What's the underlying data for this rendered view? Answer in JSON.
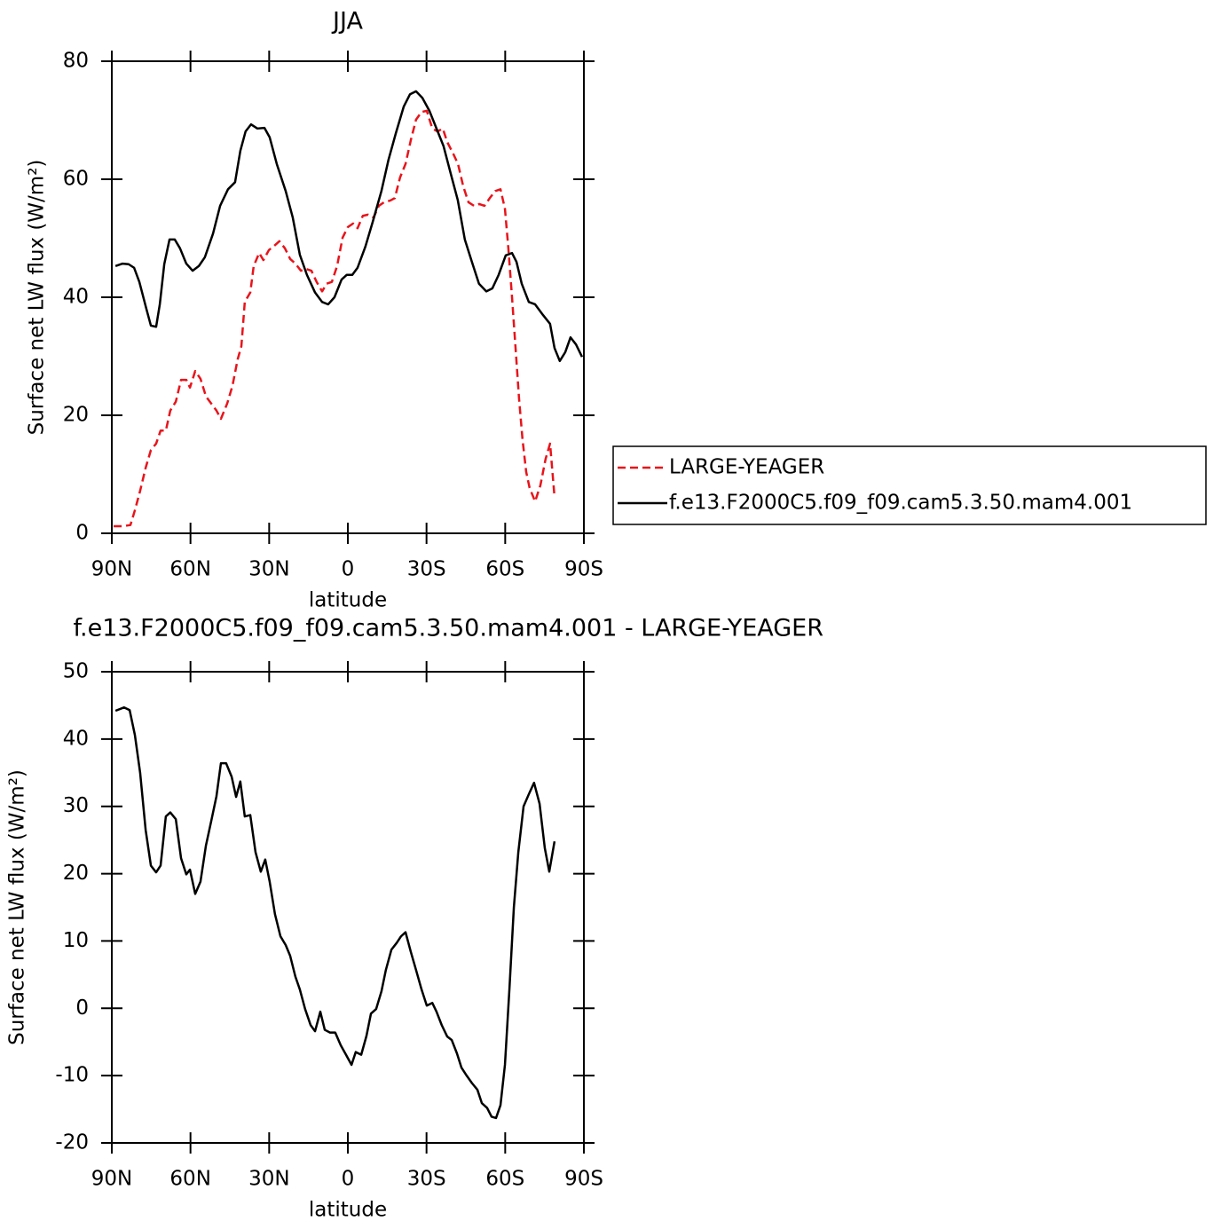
{
  "chart_data": [
    {
      "type": "line",
      "title": "JJA",
      "xlabel": "latitude",
      "ylabel": "Surface net LW flux (W/m²)",
      "xlim": [
        90,
        -90
      ],
      "xticks": [
        {
          "value": 90,
          "label": "90N"
        },
        {
          "value": 60,
          "label": "60N"
        },
        {
          "value": 30,
          "label": "30N"
        },
        0,
        {
          "value": -30,
          "label": "30S"
        },
        {
          "value": -60,
          "label": "60S"
        },
        {
          "value": -90,
          "label": "90S"
        }
      ],
      "ylim": [
        0,
        80
      ],
      "yticks": [
        0,
        20,
        40,
        60,
        80
      ],
      "legend": "right",
      "series": [
        {
          "name": "LARGE-YEAGER",
          "color": "#e8141b",
          "dashed": true,
          "x": [
            89.3,
            85.9,
            82.9,
            81.2,
            79.2,
            77.1,
            75.1,
            73.1,
            71.4,
            69.4,
            67.7,
            65.6,
            63.6,
            61.6,
            60.2,
            58.2,
            56.2,
            54.1,
            52.1,
            50.1,
            48.4,
            46,
            44,
            42,
            40.6,
            39.3,
            37.2,
            35.9,
            33.8,
            32.2,
            30.1,
            28.1,
            26.1,
            24,
            22,
            20,
            17.9,
            15.9,
            13.9,
            11.9,
            9.8,
            8.1,
            6.1,
            4.1,
            2,
            0,
            -2,
            -3.7,
            -5.7,
            -7.7,
            -9.8,
            -11.8,
            -13.8,
            -16.2,
            -17.9,
            -19.9,
            -22,
            -24,
            -26,
            -28.1,
            -30.1,
            -32.2,
            -34.2,
            -36.2,
            -37.9,
            -40,
            -42,
            -44,
            -46,
            -48.1,
            -50.1,
            -52.1,
            -54.1,
            -56.2,
            -58.2,
            -59.9,
            -61.2,
            -62.6,
            -63.9,
            -65.3,
            -66.6,
            -68,
            -69.3,
            -71.4,
            -73.4,
            -75.4,
            -77.1,
            -78.8
          ],
          "values": [
            1.2,
            1.2,
            1.4,
            3.9,
            7.2,
            11.1,
            14.1,
            15.2,
            17.4,
            17.4,
            20.8,
            22.3,
            26,
            26,
            24.7,
            27.5,
            26.2,
            23.2,
            22,
            20.8,
            19.4,
            22,
            25,
            29.5,
            31.7,
            39.2,
            40.8,
            45.3,
            47.5,
            46.3,
            48,
            48.7,
            49.5,
            48.3,
            46.5,
            45.7,
            44.5,
            44.8,
            44.5,
            42.6,
            41,
            42.3,
            42.6,
            45.3,
            50.1,
            51.9,
            52.5,
            51.7,
            53.8,
            54,
            53.5,
            55.5,
            56.1,
            56.4,
            56.8,
            60.3,
            62.6,
            66.6,
            70.1,
            71.4,
            71.6,
            68.6,
            68.1,
            68.6,
            66.3,
            64.5,
            62.6,
            58.8,
            56.1,
            55.5,
            55.8,
            55.5,
            56.8,
            58,
            58.3,
            55,
            48.3,
            40,
            31.7,
            22.7,
            15.9,
            10.4,
            7.7,
            5.4,
            8.1,
            12.6,
            15.2,
            6.2
          ]
        },
        {
          "name": "f.e13.F2000C5.f09_f09.cam5.3.50.mam4.001",
          "color": "#000000",
          "dashed": false,
          "x": [
            88.6,
            85.9,
            83.6,
            81.5,
            79.5,
            76.8,
            75.1,
            73.1,
            71.7,
            70,
            68,
            66,
            64,
            61.6,
            59.2,
            56.8,
            54.5,
            51.4,
            48.7,
            45.7,
            43,
            41,
            39,
            36.9,
            34.5,
            31.8,
            29.8,
            27.1,
            23.7,
            21,
            18.3,
            15.6,
            12.5,
            9.8,
            7.5,
            5.1,
            2.4,
            0.4,
            -1.7,
            -3.7,
            -6.7,
            -9.5,
            -12.8,
            -15.5,
            -18.3,
            -21.3,
            -23.7,
            -26,
            -28.4,
            -31.1,
            -33.8,
            -36.5,
            -39.2,
            -41.9,
            -44.6,
            -47.3,
            -50,
            -52.8,
            -55.1,
            -57.5,
            -60.2,
            -62.6,
            -64.3,
            -66.3,
            -69,
            -71.4,
            -74.4,
            -77.1,
            -78.8,
            -80.8,
            -82.9,
            -84.9,
            -87,
            -89.3
          ],
          "values": [
            45.3,
            45.7,
            45.6,
            45,
            42.6,
            38,
            35.2,
            35,
            38.8,
            45.6,
            49.8,
            49.8,
            48.3,
            45.7,
            44.5,
            45.3,
            46.8,
            50.8,
            55.5,
            58.3,
            59.5,
            64.8,
            68.1,
            69.3,
            68.6,
            68.7,
            67.1,
            62.6,
            58,
            53.5,
            47.2,
            43.8,
            40.8,
            39.2,
            38.8,
            40,
            43,
            43.8,
            43.8,
            45,
            48.6,
            52.8,
            58,
            63.3,
            67.8,
            72.3,
            74.4,
            74.9,
            73.8,
            71.6,
            68.6,
            65.6,
            61,
            56.5,
            49.8,
            46,
            42.3,
            41,
            41.5,
            43.8,
            47.1,
            47.5,
            46,
            42.3,
            39.2,
            38.8,
            37,
            35.5,
            31.4,
            29.2,
            30.7,
            33.2,
            32,
            29.9
          ]
        }
      ]
    },
    {
      "type": "line",
      "title": "f.e13.F2000C5.f09_f09.cam5.3.50.mam4.001 - LARGE-YEAGER",
      "xlabel": "latitude",
      "ylabel": "Surface net LW flux (W/m²)",
      "xlim": [
        90,
        -90
      ],
      "xticks": [
        {
          "value": 90,
          "label": "90N"
        },
        {
          "value": 60,
          "label": "60N"
        },
        {
          "value": 30,
          "label": "30N"
        },
        0,
        {
          "value": -30,
          "label": "30S"
        },
        {
          "value": -60,
          "label": "60S"
        },
        {
          "value": -90,
          "label": "90S"
        }
      ],
      "ylim": [
        -20,
        50
      ],
      "yticks": [
        -20,
        -10,
        0,
        10,
        20,
        30,
        40,
        50
      ],
      "series": [
        {
          "color": "#000000",
          "dashed": false,
          "x": [
            88.6,
            85.3,
            83.2,
            81.2,
            79.2,
            77.1,
            75.1,
            73.1,
            71.4,
            69.4,
            67.7,
            65.6,
            63.6,
            61.6,
            60.2,
            58.2,
            56.2,
            54.1,
            52.1,
            50.1,
            48.4,
            46.4,
            44.3,
            42.6,
            41,
            39.3,
            37.2,
            35.2,
            33.2,
            31.5,
            29.8,
            27.8,
            25.7,
            23.7,
            22,
            20,
            18.3,
            16.3,
            14.2,
            12.5,
            10.5,
            8.8,
            6.8,
            4.8,
            2.7,
            0.7,
            -1.4,
            -3,
            -5.1,
            -7.1,
            -8.8,
            -10.8,
            -12.8,
            -14.5,
            -16.6,
            -18.6,
            -20.3,
            -22,
            -24,
            -26,
            -28.1,
            -30.1,
            -32.2,
            -33.8,
            -35.8,
            -37.9,
            -39.6,
            -41.6,
            -43.3,
            -45.3,
            -47.3,
            -49.4,
            -51.1,
            -53.1,
            -54.8,
            -56.5,
            -58.2,
            -59.9,
            -61.6,
            -63.3,
            -65,
            -67,
            -69,
            -71,
            -73.1,
            -75.1,
            -76.8,
            -78.8
          ],
          "values": [
            44.2,
            44.7,
            44.3,
            40.6,
            35,
            26.5,
            21.2,
            20.2,
            21.2,
            28.5,
            29.1,
            28.1,
            22.3,
            19.9,
            20.6,
            17,
            18.8,
            24.2,
            27.8,
            31.5,
            36.4,
            36.4,
            34.4,
            31.4,
            33.7,
            28.5,
            28.7,
            23.2,
            20.3,
            22.1,
            18.8,
            14,
            10.7,
            9.4,
            7.8,
            4.7,
            2.8,
            -0.1,
            -2.5,
            -3.4,
            -0.5,
            -3.2,
            -3.6,
            -3.6,
            -5.5,
            -6.9,
            -8.4,
            -6.5,
            -6.9,
            -4.1,
            -0.8,
            -0.1,
            2.5,
            5.7,
            8.7,
            9.7,
            10.7,
            11.3,
            8.4,
            5.7,
            2.8,
            0.4,
            0.8,
            -0.5,
            -2.5,
            -4.2,
            -4.7,
            -6.7,
            -8.8,
            -10,
            -11.1,
            -12.1,
            -14.1,
            -14.8,
            -16.1,
            -16.3,
            -14.4,
            -8.4,
            2.8,
            15,
            23.2,
            30,
            31.8,
            33.5,
            30.4,
            23.8,
            20.3,
            24.8
          ]
        }
      ]
    }
  ]
}
